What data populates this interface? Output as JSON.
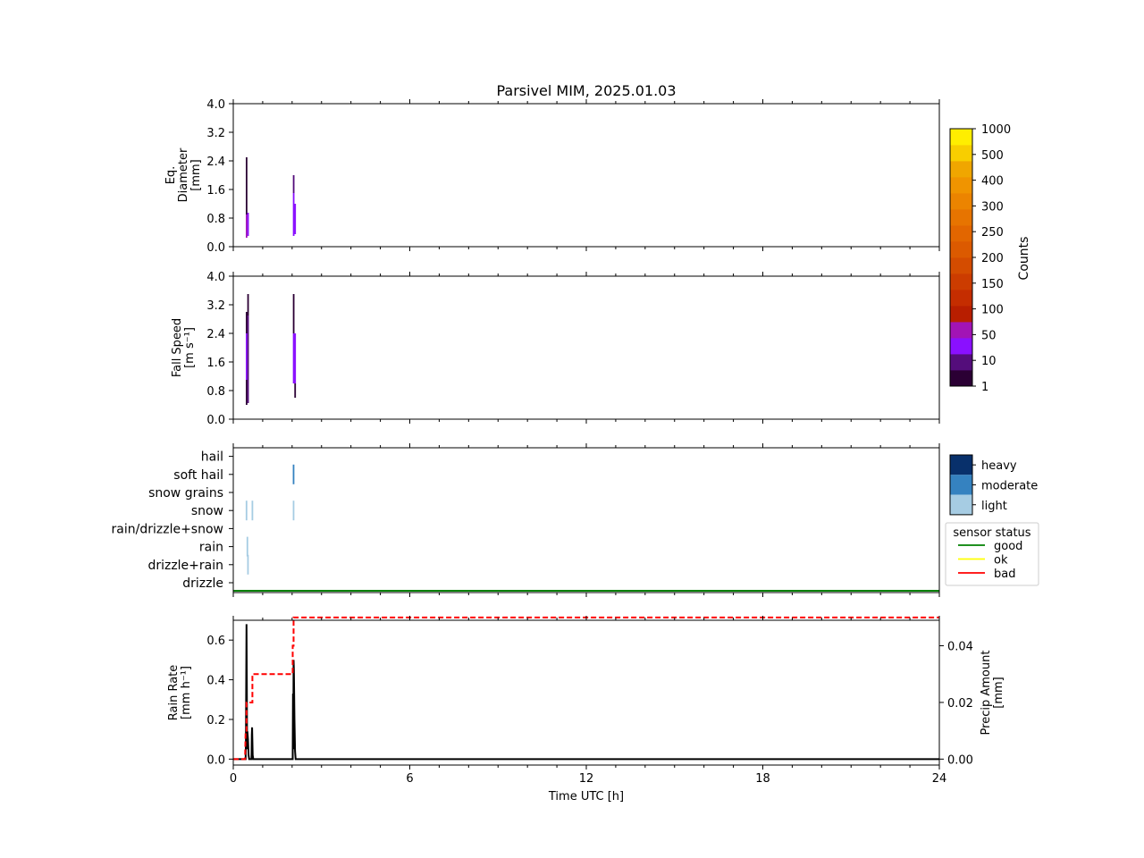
{
  "title": "Parsivel MIM, 2025.01.03",
  "colors": {
    "cmap": [
      "#2b0034",
      "#540d7b",
      "#8a10ff",
      "#a214b5",
      "#b81e00",
      "#c52d00",
      "#cc3c00",
      "#d44c00",
      "#dc5a00",
      "#e26600",
      "#e77400",
      "#ec8400",
      "#f09400",
      "#f0a600",
      "#f8ce00",
      "#ffee00"
    ],
    "intensity": {
      "light": "#a6cce3",
      "moderate": "#3582c0",
      "heavy": "#08306b"
    },
    "status": {
      "good": "#008000",
      "ok": "#ffff00",
      "bad": "#ff0000"
    },
    "rain_rate_line": "#000000",
    "precip_line": "#ff0000"
  },
  "colorbar": {
    "label": "Counts",
    "ticks": [
      "1",
      "10",
      "50",
      "100",
      "150",
      "200",
      "250",
      "300",
      "400",
      "500",
      "1000"
    ]
  },
  "time_axis": {
    "label": "Time UTC [h]",
    "ticks": [
      0,
      6,
      12,
      18,
      24
    ],
    "range": [
      0,
      24
    ]
  },
  "chart_data": [
    {
      "type": "heatmap",
      "id": "diameter",
      "ylabel": [
        "Eq.",
        "Diameter",
        "[mm]"
      ],
      "ylim": [
        0,
        4
      ],
      "yticks": [
        "0.0",
        "0.8",
        "1.6",
        "2.4",
        "3.2",
        "4.0"
      ],
      "events": [
        {
          "t": 0.45,
          "segments": [
            [
              0.25,
              0.9,
              "#a214b5"
            ],
            [
              0.9,
              2.5,
              "#2b0034"
            ]
          ]
        },
        {
          "t": 0.5,
          "segments": [
            [
              0.3,
              0.95,
              "#8a10ff"
            ]
          ]
        },
        {
          "t": 2.05,
          "segments": [
            [
              0.3,
              1.5,
              "#8a10ff"
            ],
            [
              1.5,
              2.0,
              "#540d7b"
            ]
          ]
        },
        {
          "t": 2.1,
          "segments": [
            [
              0.35,
              1.2,
              "#8a10ff"
            ]
          ]
        }
      ]
    },
    {
      "type": "heatmap",
      "id": "fall_speed",
      "ylabel": [
        "Fall Speed",
        "[m s⁻¹]"
      ],
      "ylim": [
        0,
        4
      ],
      "yticks": [
        "0.0",
        "0.8",
        "1.6",
        "2.4",
        "3.2",
        "4.0"
      ],
      "events": [
        {
          "t": 0.45,
          "segments": [
            [
              0.4,
              1.1,
              "#2b0034"
            ],
            [
              1.1,
              2.4,
              "#8a10ff"
            ],
            [
              2.4,
              3.0,
              "#2b0034"
            ]
          ]
        },
        {
          "t": 0.5,
          "segments": [
            [
              0.45,
              2.9,
              "#540d7b"
            ],
            [
              2.9,
              3.5,
              "#2b0034"
            ]
          ]
        },
        {
          "t": 2.05,
          "segments": [
            [
              1.0,
              2.4,
              "#8a10ff"
            ],
            [
              2.4,
              3.5,
              "#2b0034"
            ]
          ]
        },
        {
          "t": 2.1,
          "segments": [
            [
              0.6,
              1.0,
              "#2b0034"
            ],
            [
              1.0,
              2.4,
              "#8a10ff"
            ]
          ]
        }
      ]
    },
    {
      "type": "scatter",
      "id": "precip_type",
      "categories": [
        "drizzle",
        "drizzle+rain",
        "rain",
        "rain/drizzle+snow",
        "snow",
        "snow grains",
        "soft hail",
        "hail"
      ],
      "events": [
        {
          "t": 0.45,
          "category": "snow",
          "intensity": "light"
        },
        {
          "t": 0.65,
          "category": "snow",
          "intensity": "light"
        },
        {
          "t": 2.05,
          "category": "snow",
          "intensity": "light"
        },
        {
          "t": 2.05,
          "category": "soft hail",
          "intensity": "moderate"
        },
        {
          "t": 0.48,
          "category": "rain",
          "intensity": "light"
        },
        {
          "t": 0.5,
          "category": "drizzle+rain",
          "intensity": "light"
        }
      ],
      "intensity_legend": [
        "heavy",
        "moderate",
        "light"
      ],
      "status_legend": {
        "title": "sensor status",
        "items": [
          "good",
          "ok",
          "bad"
        ]
      },
      "status_line": {
        "status": "good",
        "from": 0,
        "to": 24
      }
    },
    {
      "type": "line",
      "id": "rain_rate",
      "ylabel": [
        "Rain Rate",
        "[mm h⁻¹]"
      ],
      "ylim": [
        -0.03,
        0.7
      ],
      "yticks": [
        0.0,
        0.2,
        0.4,
        0.6
      ],
      "ytick_labels": [
        "0.0",
        "0.2",
        "0.4",
        "0.6"
      ],
      "y2label": [
        "Precip Amount",
        "[mm]"
      ],
      "y2lim": [
        -0.0021,
        0.049
      ],
      "y2ticks": [
        0.0,
        0.02,
        0.04
      ],
      "y2tick_labels": [
        "0.00",
        "0.02",
        "0.04"
      ],
      "series": [
        {
          "axis": "left",
          "style": "solid",
          "x": [
            0,
            0.4,
            0.42,
            0.43,
            0.45,
            0.46,
            0.47,
            0.48,
            0.5,
            0.52,
            0.54,
            0.6,
            0.62,
            0.63,
            0.64,
            0.66,
            0.68,
            2.0,
            2.02,
            2.03,
            2.04,
            2.05,
            2.06,
            2.08,
            2.1,
            2.12,
            24
          ],
          "y": [
            0,
            0,
            0,
            0.1,
            0.68,
            0.4,
            0.05,
            0.14,
            0.1,
            0.02,
            0,
            0,
            0,
            0.12,
            0.16,
            0.02,
            0,
            0,
            0,
            0.33,
            0.05,
            0.5,
            0.45,
            0.2,
            0.04,
            0,
            0
          ]
        },
        {
          "axis": "right",
          "style": "dashed",
          "x": [
            0,
            0.4,
            0.42,
            0.45,
            0.45,
            0.62,
            0.62,
            0.65,
            0.65,
            2.02,
            2.02,
            2.05,
            2.05,
            24
          ],
          "y": [
            0,
            0,
            0.01,
            0.01,
            0.02,
            0.02,
            0.02,
            0.02,
            0.03,
            0.03,
            0.04,
            0.04,
            0.05,
            0.05
          ]
        }
      ]
    }
  ]
}
